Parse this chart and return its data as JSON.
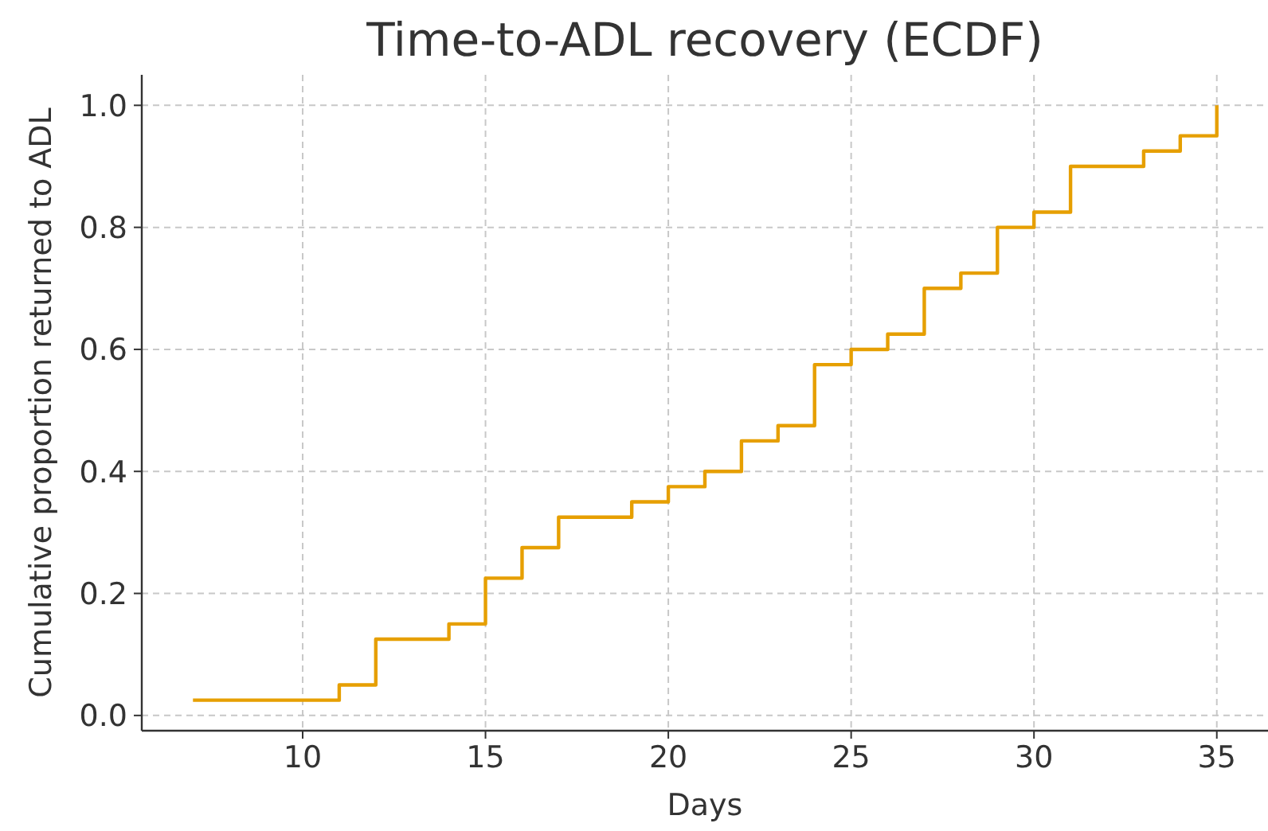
{
  "chart_data": {
    "type": "step",
    "title": "Time-to-ADL recovery (ECDF)",
    "xlabel": "Days",
    "ylabel": "Cumulative proportion returned to ADL",
    "x": [
      7,
      11,
      12,
      14,
      15,
      16,
      17,
      19,
      20,
      21,
      22,
      23,
      24,
      25,
      26,
      27,
      28,
      29,
      30,
      31,
      33,
      34,
      35
    ],
    "series": [
      {
        "color": "#e69f00",
        "values": [
          0.025,
          0.05,
          0.125,
          0.15,
          0.225,
          0.275,
          0.325,
          0.35,
          0.375,
          0.4,
          0.45,
          0.475,
          0.575,
          0.6,
          0.625,
          0.7,
          0.725,
          0.8,
          0.825,
          0.9,
          0.925,
          0.95,
          1.0
        ]
      }
    ],
    "xlim": [
      5.6,
      36.4
    ],
    "ylim": [
      -0.025,
      1.05
    ],
    "xticks": [
      10,
      15,
      20,
      25,
      30,
      35
    ],
    "yticks": [
      {
        "value": 0,
        "label": "0.0"
      },
      {
        "value": 0.2,
        "label": "0.2"
      },
      {
        "value": 0.4,
        "label": "0.4"
      },
      {
        "value": 0.6,
        "label": "0.6"
      },
      {
        "value": 0.8,
        "label": "0.8"
      },
      {
        "value": 1,
        "label": "1.0"
      }
    ],
    "grid": true,
    "line_style": "solid"
  }
}
